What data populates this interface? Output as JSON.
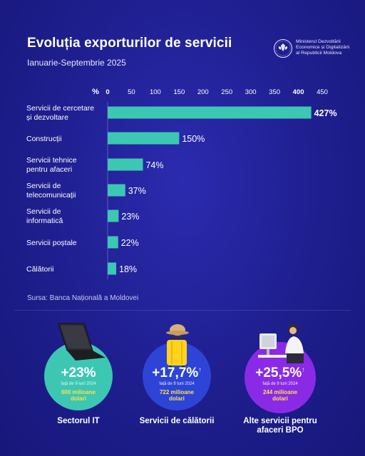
{
  "header": {
    "title": "Evoluția exporturilor de servicii",
    "subtitle": "Ianuarie-Septembrie 2025",
    "ministry": "Ministerul Dezvoltării\nEconomice și Digitalizării\nal Republicii Moldova"
  },
  "chart_data": {
    "type": "bar",
    "orientation": "horizontal",
    "axis_unit": "%",
    "xlim": [
      0,
      450
    ],
    "ticks": [
      0,
      50,
      100,
      150,
      200,
      250,
      300,
      350,
      400,
      450
    ],
    "categories": [
      [
        "Servicii de cercetare",
        "și dezvoltare"
      ],
      [
        "Construcții"
      ],
      [
        "Servicii tehnice",
        "pentru afaceri"
      ],
      [
        "Servicii de",
        "telecomunicații"
      ],
      [
        "Servicii de",
        "informatică"
      ],
      [
        "Servicii poștale"
      ],
      [
        "Călătorii"
      ]
    ],
    "values": [
      427,
      150,
      74,
      37,
      23,
      22,
      18
    ],
    "value_labels": [
      "427%",
      "150%",
      "74%",
      "37%",
      "23%",
      "22%",
      "18%"
    ],
    "bar_color": "#3cc7b2",
    "grid": false
  },
  "source": "Sursa: Banca Națională a Moldovei",
  "cards": [
    {
      "pct": "+23%",
      "arrow": "",
      "vs": "față de 9 luni 2024",
      "amount": "600 milioane dolari",
      "label": "Sectorul IT",
      "color": "#3cc7b2",
      "icon": "laptop-icon"
    },
    {
      "pct": "+17,7%",
      "arrow": "↑",
      "vs": "față de 9 luni 2024",
      "amount": "722 milioane dolari",
      "label": "Servicii de călătorii",
      "color": "#2d44d6",
      "icon": "suitcase-icon"
    },
    {
      "pct": "+25,5%",
      "arrow": "↑",
      "vs": "față de 9 luni 2024",
      "amount": "244 milioane dolari",
      "label": "Alte servicii pentru afaceri BPO",
      "color": "#8a2ae6",
      "icon": "office-worker-icon"
    }
  ]
}
